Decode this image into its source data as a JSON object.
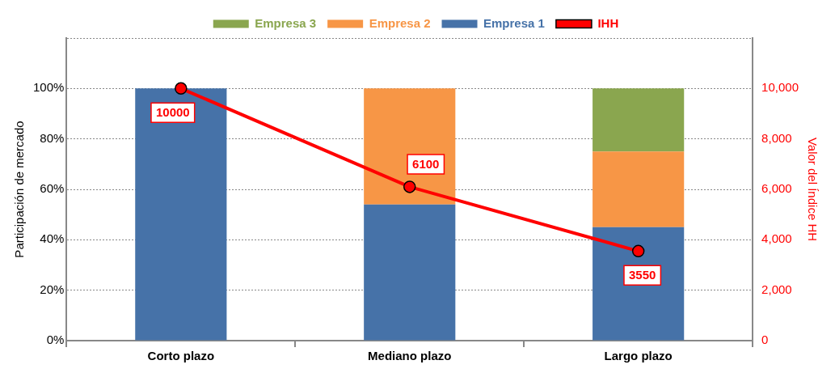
{
  "chart_data": {
    "type": "bar",
    "stacked": true,
    "ylabel": "Participación de mercado",
    "y2label": "Valor del Índice HH",
    "categories": [
      "Corto plazo",
      "Mediano plazo",
      "Largo plazo"
    ],
    "series": [
      {
        "name": "Empresa 1",
        "color": "#4672a8",
        "values": [
          100,
          54,
          45
        ]
      },
      {
        "name": "Empresa 2",
        "color": "#f79646",
        "values": [
          0,
          46,
          30
        ]
      },
      {
        "name": "Empresa 3",
        "color": "#8aa64f",
        "values": [
          0,
          0,
          25
        ]
      },
      {
        "name": "IHH",
        "type": "line",
        "axis": "y2",
        "color": "#ff0000",
        "marker": "circle",
        "line_style": "solid",
        "values": [
          10000,
          6100,
          3550
        ],
        "value_labels": [
          "10000",
          "6100",
          "3550"
        ]
      }
    ],
    "ylim": [
      0,
      120
    ],
    "yticks": [
      {
        "value": 0,
        "label": "0%"
      },
      {
        "value": 20,
        "label": "20%"
      },
      {
        "value": 40,
        "label": "40%"
      },
      {
        "value": 60,
        "label": "60%"
      },
      {
        "value": 80,
        "label": "80%"
      },
      {
        "value": 100,
        "label": "100%"
      },
      {
        "value": 120,
        "label": null
      }
    ],
    "y2lim": [
      0,
      12000
    ],
    "y2ticks": [
      0,
      {
        "value": 2000,
        "label": "2,000"
      },
      {
        "value": 4000,
        "label": "4,000"
      },
      {
        "value": 6000,
        "label": "6,000"
      },
      {
        "value": 8000,
        "label": "8,000"
      },
      {
        "value": 10000,
        "label": "10,000"
      },
      {
        "value": 12000,
        "label": null
      }
    ],
    "grid": "y",
    "legend": "top"
  }
}
